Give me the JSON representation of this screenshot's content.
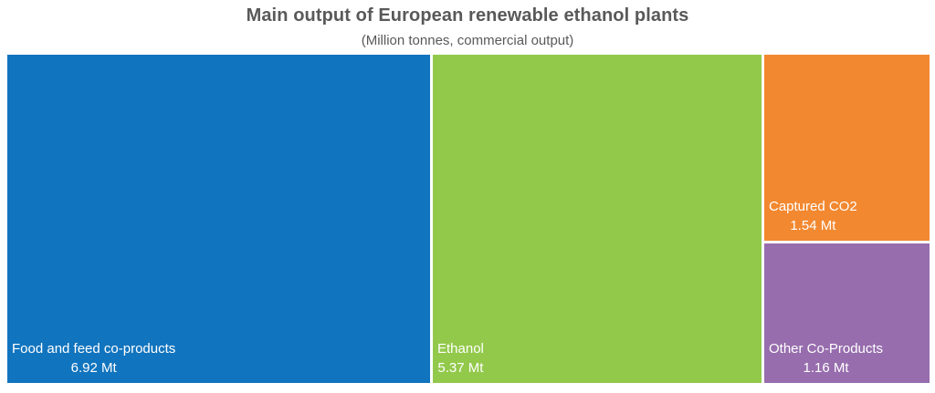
{
  "chart_data": {
    "type": "treemap",
    "title": "Main output of European renewable ethanol plants",
    "subtitle": "(Million tonnes, commercial output)",
    "unit": "Mt",
    "items": [
      {
        "label": "Food and feed co-products",
        "value": 6.92,
        "value_label": "6.92 Mt",
        "color": "#1174be"
      },
      {
        "label": "Ethanol",
        "value": 5.37,
        "value_label": "5.37 Mt",
        "color": "#92c94b"
      },
      {
        "label": "Captured CO2",
        "value": 1.54,
        "value_label": "1.54 Mt",
        "color": "#f28830"
      },
      {
        "label": "Other Co-Products",
        "value": 1.16,
        "value_label": "1.16 Mt",
        "color": "#976dad"
      }
    ]
  }
}
